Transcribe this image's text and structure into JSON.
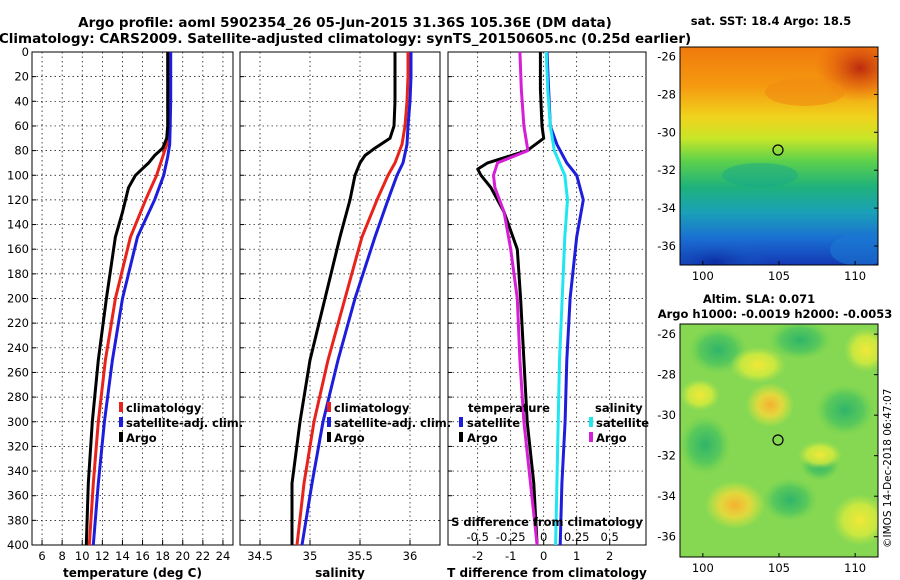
{
  "header": {
    "title_line1": "Argo profile: aoml 5902354_26 05-Jun-2015 31.36S 105.36E (DM data)",
    "title_line2": "Climatology: CARS2009. Satellite-adjusted climatology: synTS_20150605.nc (0.25d earlier)"
  },
  "colors": {
    "climatology": "#e8231c",
    "satellite": "#1d1ddc",
    "argo": "#000000",
    "satellite_salinity": "#1fe6f0",
    "argo_salinity": "#d61ed6"
  },
  "chart_data": [
    {
      "type": "line",
      "title": "",
      "xlabel": "temperature (deg C)",
      "ylabel": "",
      "xlim": [
        5,
        25
      ],
      "ylim": [
        400,
        0
      ],
      "xticks": [
        "6",
        "8",
        "10",
        "12",
        "14",
        "16",
        "18",
        "20",
        "22",
        "24"
      ],
      "yticks": [
        "0",
        "20",
        "40",
        "60",
        "80",
        "100",
        "120",
        "140",
        "160",
        "180",
        "200",
        "220",
        "240",
        "260",
        "280",
        "300",
        "320",
        "340",
        "360",
        "380",
        "400"
      ],
      "legend": [
        "climatology",
        "satellite-adj. clim.",
        "Argo"
      ],
      "series": [
        {
          "name": "climatology",
          "color_key": "climatology",
          "depth": [
            0,
            20,
            40,
            60,
            75,
            85,
            100,
            120,
            150,
            200,
            250,
            300,
            350,
            400
          ],
          "values": [
            18.6,
            18.6,
            18.6,
            18.55,
            18.4,
            18.0,
            17.4,
            16.3,
            14.8,
            13.3,
            12.3,
            11.6,
            11.1,
            10.7
          ]
        },
        {
          "name": "satellite-adj. clim.",
          "color_key": "satellite",
          "depth": [
            0,
            20,
            40,
            60,
            75,
            85,
            100,
            120,
            150,
            200,
            250,
            300,
            350,
            400
          ],
          "values": [
            18.8,
            18.8,
            18.8,
            18.75,
            18.7,
            18.5,
            18.1,
            17.2,
            15.5,
            14.0,
            13.0,
            12.2,
            11.6,
            11.1
          ]
        },
        {
          "name": "Argo",
          "color_key": "argo",
          "depth": [
            0,
            20,
            40,
            60,
            70,
            78,
            84,
            90,
            100,
            110,
            130,
            150,
            200,
            250,
            300,
            350,
            400
          ],
          "values": [
            18.5,
            18.5,
            18.5,
            18.5,
            18.4,
            18.0,
            17.2,
            16.6,
            15.3,
            14.6,
            14.0,
            13.3,
            12.4,
            11.6,
            11.0,
            10.6,
            10.4
          ]
        }
      ]
    },
    {
      "type": "line",
      "title": "",
      "xlabel": "salinity",
      "ylabel": "",
      "xlim": [
        34.3,
        36.3
      ],
      "ylim": [
        400,
        0
      ],
      "xticks": [
        "34.5",
        "35",
        "35.5",
        "36"
      ],
      "legend": [
        "climatology",
        "satellite-adj. clim.",
        "Argo"
      ],
      "series": [
        {
          "name": "climatology",
          "color_key": "climatology",
          "depth": [
            0,
            20,
            40,
            60,
            75,
            90,
            100,
            120,
            150,
            200,
            250,
            300,
            350,
            400
          ],
          "values": [
            35.98,
            35.98,
            35.97,
            35.95,
            35.92,
            35.85,
            35.78,
            35.67,
            35.52,
            35.35,
            35.18,
            35.04,
            34.94,
            34.87
          ]
        },
        {
          "name": "satellite-adj. clim.",
          "color_key": "satellite",
          "depth": [
            0,
            20,
            40,
            60,
            75,
            90,
            100,
            120,
            150,
            200,
            250,
            300,
            350,
            400
          ],
          "values": [
            36.01,
            36.01,
            36.0,
            35.98,
            35.97,
            35.93,
            35.87,
            35.78,
            35.65,
            35.45,
            35.28,
            35.13,
            35.02,
            34.92
          ]
        },
        {
          "name": "Argo",
          "color_key": "argo",
          "depth": [
            0,
            20,
            40,
            60,
            70,
            78,
            84,
            90,
            100,
            120,
            150,
            200,
            250,
            300,
            350,
            400
          ],
          "values": [
            35.85,
            35.85,
            35.85,
            35.84,
            35.8,
            35.65,
            35.55,
            35.5,
            35.45,
            35.4,
            35.3,
            35.15,
            35.0,
            34.9,
            34.82,
            34.82
          ]
        }
      ]
    },
    {
      "type": "line",
      "title": "",
      "xlabel": "T difference from climatology",
      "ylabel": "",
      "xlim": [
        -2.9,
        3.1
      ],
      "ylim": [
        400,
        0
      ],
      "xticks": [
        "-2",
        "-1",
        "0",
        "1",
        "2"
      ],
      "top_label": "S difference from climatology",
      "top_ticks": [
        "-0.5",
        "-0.25",
        "0",
        "0.25",
        "0.5"
      ],
      "legend_temperature": [
        "temperature",
        "satellite",
        "Argo"
      ],
      "legend_salinity": [
        "salinity",
        "satellite",
        "Argo"
      ],
      "series": [
        {
          "name": "temperature satellite",
          "color_key": "satellite",
          "depth": [
            0,
            30,
            60,
            75,
            90,
            100,
            110,
            120,
            150,
            200,
            250,
            300,
            350,
            400
          ],
          "values": [
            0.1,
            0.15,
            0.2,
            0.4,
            0.7,
            1.0,
            1.1,
            1.2,
            1.0,
            0.8,
            0.7,
            0.65,
            0.55,
            0.5
          ]
        },
        {
          "name": "temperature Argo",
          "color_key": "argo",
          "depth": [
            0,
            30,
            60,
            70,
            80,
            90,
            95,
            100,
            110,
            130,
            160,
            200,
            250,
            300,
            350,
            400
          ],
          "values": [
            -0.1,
            -0.1,
            -0.05,
            0.0,
            -0.5,
            -1.7,
            -2.0,
            -1.9,
            -1.6,
            -1.2,
            -0.8,
            -0.7,
            -0.6,
            -0.5,
            -0.3,
            -0.2
          ]
        },
        {
          "name": "salinity satellite",
          "color_key": "satellite_salinity",
          "depth": [
            0,
            30,
            60,
            80,
            100,
            120,
            150,
            200,
            250,
            300,
            350,
            400
          ],
          "values": [
            0.02,
            0.03,
            0.05,
            0.08,
            0.16,
            0.18,
            0.16,
            0.14,
            0.12,
            0.11,
            0.1,
            0.09
          ]
        },
        {
          "name": "salinity Argo",
          "color_key": "argo_salinity",
          "depth": [
            0,
            30,
            60,
            80,
            90,
            100,
            110,
            130,
            160,
            200,
            250,
            300,
            350,
            400
          ],
          "values": [
            -0.18,
            -0.17,
            -0.15,
            -0.12,
            -0.35,
            -0.38,
            -0.37,
            -0.3,
            -0.25,
            -0.2,
            -0.18,
            -0.15,
            -0.1,
            -0.05
          ]
        }
      ]
    }
  ],
  "maps": {
    "sst": {
      "title": "sat. SST: 18.4 Argo: 18.5",
      "yticks": [
        "-26",
        "-28",
        "-30",
        "-32",
        "-34",
        "-36"
      ],
      "xticks": [
        "100",
        "105",
        "110"
      ]
    },
    "sla": {
      "title_line1": "Altim. SLA: 0.071",
      "title_line2": "Argo h1000: -0.0019 h2000: -0.0053",
      "yticks": [
        "-26",
        "-28",
        "-30",
        "-32",
        "-34",
        "-36"
      ],
      "xticks": [
        "100",
        "105",
        "110"
      ]
    }
  },
  "credit": "©IMOS 14-Dec-2018 06:47:07"
}
